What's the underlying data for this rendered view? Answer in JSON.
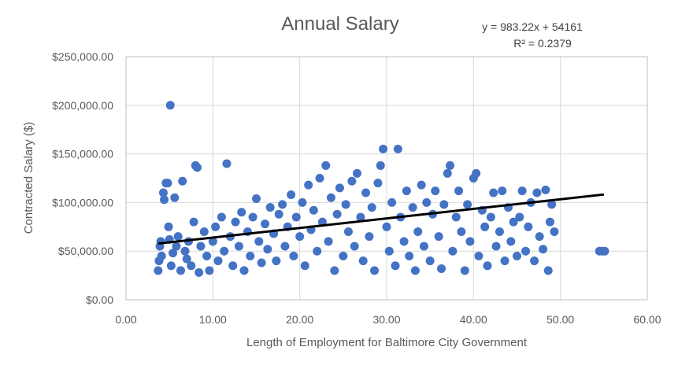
{
  "chart_data": {
    "type": "scatter",
    "title": "Annual Salary",
    "xlabel": "Length of Employment for Baltimore City Government",
    "ylabel": "Contracted Salary ($)",
    "xlim": [
      0,
      60
    ],
    "ylim": [
      0,
      250000
    ],
    "x_ticks": [
      0,
      10,
      20,
      30,
      40,
      50,
      60
    ],
    "y_ticks": [
      0,
      50000,
      100000,
      150000,
      200000,
      250000
    ],
    "x_tick_labels": [
      "0.00",
      "10.00",
      "20.00",
      "30.00",
      "40.00",
      "50.00",
      "60.00"
    ],
    "y_tick_labels": [
      "$0.00",
      "$50,000.00",
      "$100,000.00",
      "$150,000.00",
      "$200,000.00",
      "$250,000.00"
    ],
    "grid": true,
    "legend": "none",
    "marker_color": "#4472C4",
    "trendline": {
      "slope": 983.22,
      "intercept": 54161,
      "x_range": [
        3.7,
        55
      ],
      "color": "#000000",
      "equation_label": "y = 983.22x + 54161",
      "r2_label": "R² = 0.2379"
    },
    "series": [
      {
        "points": [
          [
            5.1,
            200000
          ],
          [
            3.7,
            30000
          ],
          [
            3.8,
            40000
          ],
          [
            3.9,
            55000
          ],
          [
            4.0,
            60000
          ],
          [
            4.1,
            45000
          ],
          [
            4.3,
            110000
          ],
          [
            4.4,
            103000
          ],
          [
            4.6,
            120000
          ],
          [
            4.8,
            120000
          ],
          [
            4.9,
            75000
          ],
          [
            5.0,
            62000
          ],
          [
            5.2,
            35000
          ],
          [
            5.4,
            48000
          ],
          [
            5.6,
            105000
          ],
          [
            5.8,
            55000
          ],
          [
            6.0,
            65000
          ],
          [
            6.3,
            30000
          ],
          [
            6.5,
            122000
          ],
          [
            6.8,
            50000
          ],
          [
            7.0,
            42000
          ],
          [
            7.2,
            60000
          ],
          [
            7.5,
            35000
          ],
          [
            7.8,
            80000
          ],
          [
            8.0,
            138000
          ],
          [
            8.2,
            136000
          ],
          [
            8.4,
            28000
          ],
          [
            8.6,
            55000
          ],
          [
            9.0,
            70000
          ],
          [
            9.3,
            45000
          ],
          [
            9.6,
            30000
          ],
          [
            10.0,
            60000
          ],
          [
            10.3,
            75000
          ],
          [
            10.6,
            40000
          ],
          [
            11.0,
            85000
          ],
          [
            11.3,
            50000
          ],
          [
            11.6,
            140000
          ],
          [
            12.0,
            65000
          ],
          [
            12.3,
            35000
          ],
          [
            12.6,
            80000
          ],
          [
            13.0,
            55000
          ],
          [
            13.3,
            90000
          ],
          [
            13.6,
            30000
          ],
          [
            14.0,
            70000
          ],
          [
            14.3,
            45000
          ],
          [
            14.6,
            85000
          ],
          [
            15.0,
            104000
          ],
          [
            15.3,
            60000
          ],
          [
            15.6,
            38000
          ],
          [
            16.0,
            78000
          ],
          [
            16.3,
            52000
          ],
          [
            16.6,
            95000
          ],
          [
            17.0,
            68000
          ],
          [
            17.3,
            40000
          ],
          [
            17.6,
            88000
          ],
          [
            18.0,
            98000
          ],
          [
            18.3,
            55000
          ],
          [
            18.6,
            75000
          ],
          [
            19.0,
            108000
          ],
          [
            19.3,
            45000
          ],
          [
            19.6,
            85000
          ],
          [
            20.0,
            65000
          ],
          [
            20.3,
            100000
          ],
          [
            20.6,
            35000
          ],
          [
            21.0,
            118000
          ],
          [
            21.3,
            72000
          ],
          [
            21.6,
            92000
          ],
          [
            22.0,
            50000
          ],
          [
            22.3,
            125000
          ],
          [
            22.6,
            80000
          ],
          [
            23.0,
            138000
          ],
          [
            23.3,
            60000
          ],
          [
            23.6,
            105000
          ],
          [
            24.0,
            30000
          ],
          [
            24.3,
            88000
          ],
          [
            24.6,
            115000
          ],
          [
            25.0,
            45000
          ],
          [
            25.3,
            98000
          ],
          [
            25.6,
            70000
          ],
          [
            26.0,
            122000
          ],
          [
            26.3,
            55000
          ],
          [
            26.6,
            130000
          ],
          [
            27.0,
            85000
          ],
          [
            27.3,
            40000
          ],
          [
            27.6,
            110000
          ],
          [
            28.0,
            65000
          ],
          [
            28.3,
            95000
          ],
          [
            28.6,
            30000
          ],
          [
            29.0,
            120000
          ],
          [
            29.3,
            138000
          ],
          [
            29.6,
            155000
          ],
          [
            30.0,
            75000
          ],
          [
            30.3,
            50000
          ],
          [
            30.6,
            100000
          ],
          [
            31.0,
            35000
          ],
          [
            31.3,
            155000
          ],
          [
            31.6,
            85000
          ],
          [
            32.0,
            60000
          ],
          [
            32.3,
            112000
          ],
          [
            32.6,
            45000
          ],
          [
            33.0,
            95000
          ],
          [
            33.3,
            30000
          ],
          [
            33.6,
            70000
          ],
          [
            34.0,
            118000
          ],
          [
            34.3,
            55000
          ],
          [
            34.6,
            100000
          ],
          [
            35.0,
            40000
          ],
          [
            35.3,
            88000
          ],
          [
            35.6,
            112000
          ],
          [
            36.0,
            65000
          ],
          [
            36.3,
            32000
          ],
          [
            36.6,
            98000
          ],
          [
            37.0,
            130000
          ],
          [
            37.3,
            138000
          ],
          [
            37.6,
            50000
          ],
          [
            38.0,
            85000
          ],
          [
            38.3,
            112000
          ],
          [
            38.6,
            70000
          ],
          [
            39.0,
            30000
          ],
          [
            39.3,
            98000
          ],
          [
            39.6,
            60000
          ],
          [
            40.0,
            125000
          ],
          [
            40.3,
            130000
          ],
          [
            40.6,
            45000
          ],
          [
            41.0,
            92000
          ],
          [
            41.3,
            75000
          ],
          [
            41.6,
            35000
          ],
          [
            42.0,
            85000
          ],
          [
            42.3,
            110000
          ],
          [
            42.6,
            55000
          ],
          [
            43.0,
            70000
          ],
          [
            43.3,
            112000
          ],
          [
            43.6,
            40000
          ],
          [
            44.0,
            95000
          ],
          [
            44.3,
            60000
          ],
          [
            44.6,
            80000
          ],
          [
            45.0,
            45000
          ],
          [
            45.3,
            85000
          ],
          [
            45.6,
            112000
          ],
          [
            46.0,
            50000
          ],
          [
            46.3,
            75000
          ],
          [
            46.6,
            100000
          ],
          [
            47.0,
            40000
          ],
          [
            47.3,
            110000
          ],
          [
            47.6,
            65000
          ],
          [
            48.0,
            52000
          ],
          [
            48.3,
            113000
          ],
          [
            48.6,
            30000
          ],
          [
            48.8,
            80000
          ],
          [
            49.0,
            98000
          ],
          [
            49.3,
            70000
          ],
          [
            54.5,
            50000
          ],
          [
            54.8,
            50000
          ],
          [
            55.1,
            50000
          ]
        ]
      }
    ]
  }
}
